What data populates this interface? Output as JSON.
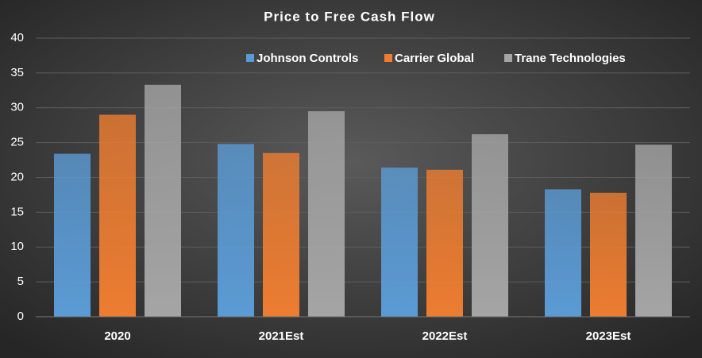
{
  "chart_data": {
    "type": "bar",
    "title": "Price to Free Cash Flow",
    "categories": [
      "2020",
      "2021Est",
      "2022Est",
      "2023Est"
    ],
    "series": [
      {
        "name": "Johnson Controls",
        "color": "#5b9bd5",
        "values": [
          23.4,
          24.8,
          21.4,
          18.3
        ]
      },
      {
        "name": "Carrier Global",
        "color": "#ed7d31",
        "values": [
          29.0,
          23.5,
          21.1,
          17.8
        ]
      },
      {
        "name": "Trane Technologies",
        "color": "#a5a5a5",
        "values": [
          33.3,
          29.5,
          26.2,
          24.7
        ]
      }
    ],
    "ylim": [
      0,
      40
    ],
    "yticks": [
      0,
      5,
      10,
      15,
      20,
      25,
      30,
      35,
      40
    ],
    "grid": true,
    "legend": "top"
  }
}
